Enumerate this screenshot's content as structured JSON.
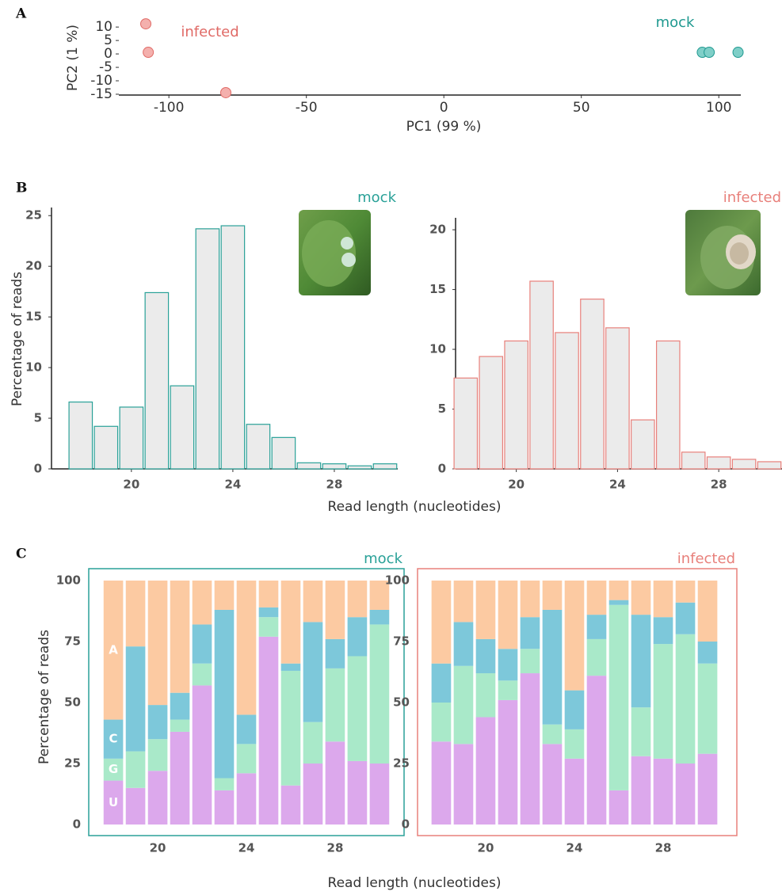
{
  "chart_data": [
    {
      "type": "scatter",
      "panel_label": "A",
      "xlabel": "PC1 (99 %)",
      "ylabel": "PC2 (1 %)",
      "xlim": [
        -118.2,
        108
      ],
      "xticks": [
        -100,
        -50,
        0,
        50,
        100
      ],
      "ylim": [
        -15.3,
        12.4
      ],
      "yticks": [
        10,
        5,
        0,
        -5,
        -10,
        -15
      ],
      "series": [
        {
          "name": "infected",
          "color": "#f4b0ad",
          "edge_color": "#e06a66",
          "x": [
            -108.4,
            -107.5,
            -79.3
          ],
          "values": [
            11.2,
            0.6,
            -14.4
          ]
        },
        {
          "name": "mock",
          "color": "#7fcfc8",
          "edge_color": "#1f9990",
          "x": [
            94,
            96.5,
            107
          ],
          "values": [
            0.6,
            0.6,
            0.6
          ]
        }
      ]
    },
    {
      "type": "histogram",
      "panel_label": "B",
      "title": "mock",
      "ylabel": "Percentage of reads",
      "xlabel": "Read length (nucleotides)",
      "x": [
        18,
        19,
        20,
        21,
        22,
        23,
        24,
        25,
        26,
        27,
        28,
        29,
        30
      ],
      "values": [
        6.6,
        4.2,
        6.1,
        17.4,
        8.2,
        23.7,
        24.0,
        4.4,
        3.1,
        0.6,
        0.5,
        0.3,
        0.5
      ],
      "xlim": [
        16.85,
        30.5
      ],
      "xticks": [
        20,
        24,
        28
      ],
      "ylim": [
        0,
        25.8
      ],
      "yticks": [
        0,
        5,
        10,
        15,
        20,
        25
      ],
      "color": "#ebebeb",
      "edge_color": "#2aa198"
    },
    {
      "type": "histogram",
      "title": "infected",
      "x": [
        18,
        19,
        20,
        21,
        22,
        23,
        24,
        25,
        26,
        27,
        28,
        29,
        30
      ],
      "values": [
        7.6,
        9.4,
        10.7,
        15.7,
        11.4,
        14.2,
        11.8,
        4.1,
        10.7,
        1.4,
        1.0,
        0.8,
        0.6
      ],
      "xlim": [
        17.6,
        30.5
      ],
      "xticks": [
        20,
        24,
        28
      ],
      "ylim": [
        0,
        21
      ],
      "yticks": [
        0,
        5,
        10,
        15,
        20
      ],
      "color": "#ebebeb",
      "edge_color": "#e8807b"
    },
    {
      "type": "stacked_bar",
      "panel_label": "C",
      "title": "mock",
      "ylabel": "Percentage of reads",
      "edge_color": "#2aa198",
      "x": [
        18,
        19,
        20,
        21,
        22,
        23,
        24,
        25,
        26,
        27,
        28,
        29,
        30
      ],
      "xlim": [
        16.89,
        31.11
      ],
      "xticks": [
        20,
        24,
        28
      ],
      "ylim": [
        0,
        100
      ],
      "yticks": [
        0,
        25,
        50,
        75,
        100
      ],
      "series": [
        {
          "name": "U",
          "color": "#dca8ec",
          "values": [
            18,
            15,
            22,
            38,
            57,
            14,
            21,
            77,
            16,
            25,
            34,
            26,
            25
          ]
        },
        {
          "name": "G",
          "color": "#a9e9c9",
          "values": [
            9,
            15,
            13,
            5,
            9,
            5,
            12,
            8,
            47,
            17,
            30,
            43,
            57
          ]
        },
        {
          "name": "C",
          "color": "#7dc8da",
          "values": [
            16,
            43,
            14,
            11,
            16,
            69,
            12,
            4,
            3,
            41,
            12,
            16,
            6
          ]
        },
        {
          "name": "A",
          "color": "#fccaa2",
          "values": [
            57,
            27,
            51,
            46,
            18,
            12,
            55,
            11,
            34,
            17,
            24,
            15,
            12
          ]
        }
      ]
    },
    {
      "type": "stacked_bar",
      "title": "infected",
      "xlabel": "Read length (nucleotides)",
      "edge_color": "#e8807b",
      "x": [
        18,
        19,
        20,
        21,
        22,
        23,
        24,
        25,
        26,
        27,
        28,
        29,
        30
      ],
      "xlim": [
        16.93,
        31.32
      ],
      "xticks": [
        20,
        24,
        28
      ],
      "ylim": [
        0,
        100
      ],
      "yticks": [
        0,
        25,
        50,
        75,
        100
      ],
      "series": [
        {
          "color": "#dca8ec",
          "values": [
            34,
            33,
            44,
            51,
            62,
            33,
            27,
            61,
            14,
            28,
            27,
            25,
            29
          ]
        },
        {
          "color": "#a9e9c9",
          "values": [
            16,
            32,
            18,
            8,
            10,
            8,
            12,
            15,
            76,
            20,
            47,
            53,
            37
          ]
        },
        {
          "color": "#7dc8da",
          "values": [
            16,
            18,
            14,
            13,
            13,
            47,
            16,
            10,
            2,
            38,
            11,
            13,
            9
          ]
        },
        {
          "color": "#fccaa2",
          "values": [
            34,
            17,
            24,
            28,
            15,
            12,
            45,
            14,
            8,
            14,
            15,
            9,
            25
          ]
        }
      ]
    }
  ]
}
